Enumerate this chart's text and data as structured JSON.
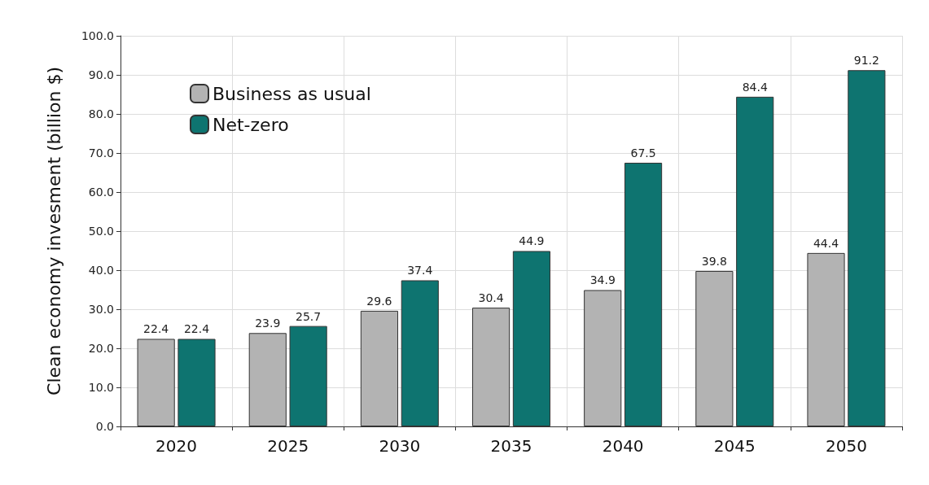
{
  "chart_data": {
    "type": "bar",
    "ylabel": "Clean economy invesment (billion $)",
    "categories": [
      "2020",
      "2025",
      "2030",
      "2035",
      "2040",
      "2045",
      "2050"
    ],
    "series": [
      {
        "name": "Business as usual",
        "color": "#b3b3b3",
        "values": [
          22.4,
          23.9,
          29.6,
          30.4,
          34.9,
          39.8,
          44.4
        ]
      },
      {
        "name": "Net-zero",
        "color": "#0e7470",
        "values": [
          22.4,
          25.7,
          37.4,
          44.9,
          67.5,
          84.4,
          91.2
        ]
      }
    ],
    "ylim": [
      0,
      100
    ],
    "yticks": [
      {
        "value": 0,
        "label": "0.0"
      },
      {
        "value": 10,
        "label": "10.0"
      },
      {
        "value": 20,
        "label": "20.0"
      },
      {
        "value": 30,
        "label": "30.0"
      },
      {
        "value": 40,
        "label": "40.0"
      },
      {
        "value": 50,
        "label": "50.0"
      },
      {
        "value": 60,
        "label": "60.0"
      },
      {
        "value": 70,
        "label": "70.0"
      },
      {
        "value": 80,
        "label": "80.0"
      },
      {
        "value": 90,
        "label": "90.0"
      },
      {
        "value": 100,
        "label": "100.0"
      }
    ],
    "grid": true,
    "legend": "top left",
    "data_labels": true
  }
}
